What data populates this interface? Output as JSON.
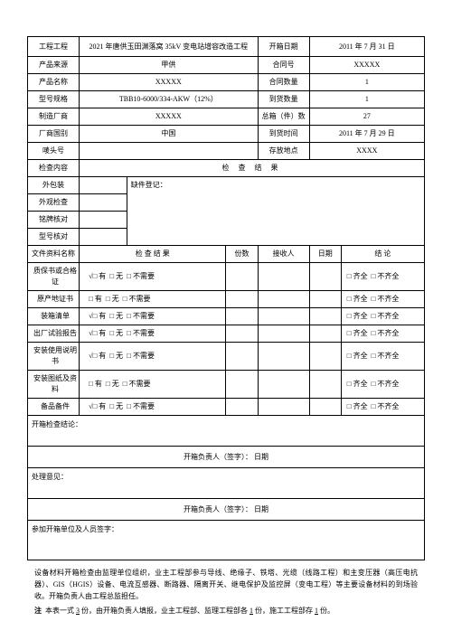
{
  "header": {
    "project_label": "工程工程",
    "project_value": "2021 年唐供玉田渊落窝 35kV 变电站增容改造工程",
    "open_date_label": "开箱日期",
    "open_date_value": "2011 年 7 月 31 日",
    "source_label": "产品来源",
    "source_value": "甲供",
    "contract_no_label": "合同号",
    "contract_no_value": "XXXXX",
    "product_name_label": "产品名称",
    "product_name_value": "XXXXX",
    "contract_qty_label": "合同数量",
    "contract_qty_value": "1",
    "spec_label": "型号规格",
    "spec_value": "TBB10-6000/334-AKW（12%）",
    "arrive_qty_label": "到货数量",
    "arrive_qty_value": "1",
    "mfg_label": "制造厂商",
    "mfg_value": "XXXXX",
    "box_count_label": "总箱（件）数",
    "box_count_value": "27",
    "country_label": "厂商国别",
    "country_value": "中国",
    "arrive_time_label": "到货时间",
    "arrive_time_value": "2011 年 7 月 29 日",
    "invoice_label": "唛头号",
    "invoice_value": "",
    "storage_label": "存放地点",
    "storage_value": "XXXX"
  },
  "inspect": {
    "content_label": "检查内容",
    "result_header": "检  查  结  果",
    "outer_pack": "外包装",
    "appearance": "外观检查",
    "nameplate": "铭牌核对",
    "model_verify": "型号核对",
    "missing_label": "缺件登记："
  },
  "docs": {
    "name_header": "文件资料名称",
    "check_header": "检  查  结  果",
    "copies_header": "份数",
    "receiver_header": "接收人",
    "date_header": "日期",
    "conclusion_header": "结    论",
    "rows": [
      {
        "name": "质保书或合格证",
        "checked": true
      },
      {
        "name": "原产地证书",
        "checked": false
      },
      {
        "name": "装箱清单",
        "checked": true
      },
      {
        "name": "出厂试验报告",
        "checked": true
      },
      {
        "name": "安装使用说明书",
        "checked": true
      },
      {
        "name": "安装图纸及资料",
        "checked": false
      },
      {
        "name": "备品备件",
        "checked": true
      }
    ],
    "opt_you": "有",
    "opt_wu": "无",
    "opt_bxy": "不需要",
    "opt_qq": "齐全",
    "opt_bqq": "不齐全"
  },
  "sections": {
    "conclusion_label": "开箱检查结论：",
    "sig_line": "开箱负责人（签字）：              日期",
    "handle_label": "处理意见：",
    "participants_label": "参加开箱单位及人员签字："
  },
  "footer": {
    "para": "设备材料开箱检查由监理单位组织，业主工程部参与导线、绝缘子、铁塔、光缆（线路工程）和主变压器（高压电抗器）、GIS（HGIS）设备、电流互感器、断路器、隔离开关、继电保护及监控屏（变电工程）等主要设备材料的到场验收。开箱负责人由工程总监担任。",
    "note_label": "注",
    "note_text": "本表一式 3 份，由开箱负责人填报，业主工程部、监理工程部各 1 份，施工工程部存 1 份。"
  }
}
